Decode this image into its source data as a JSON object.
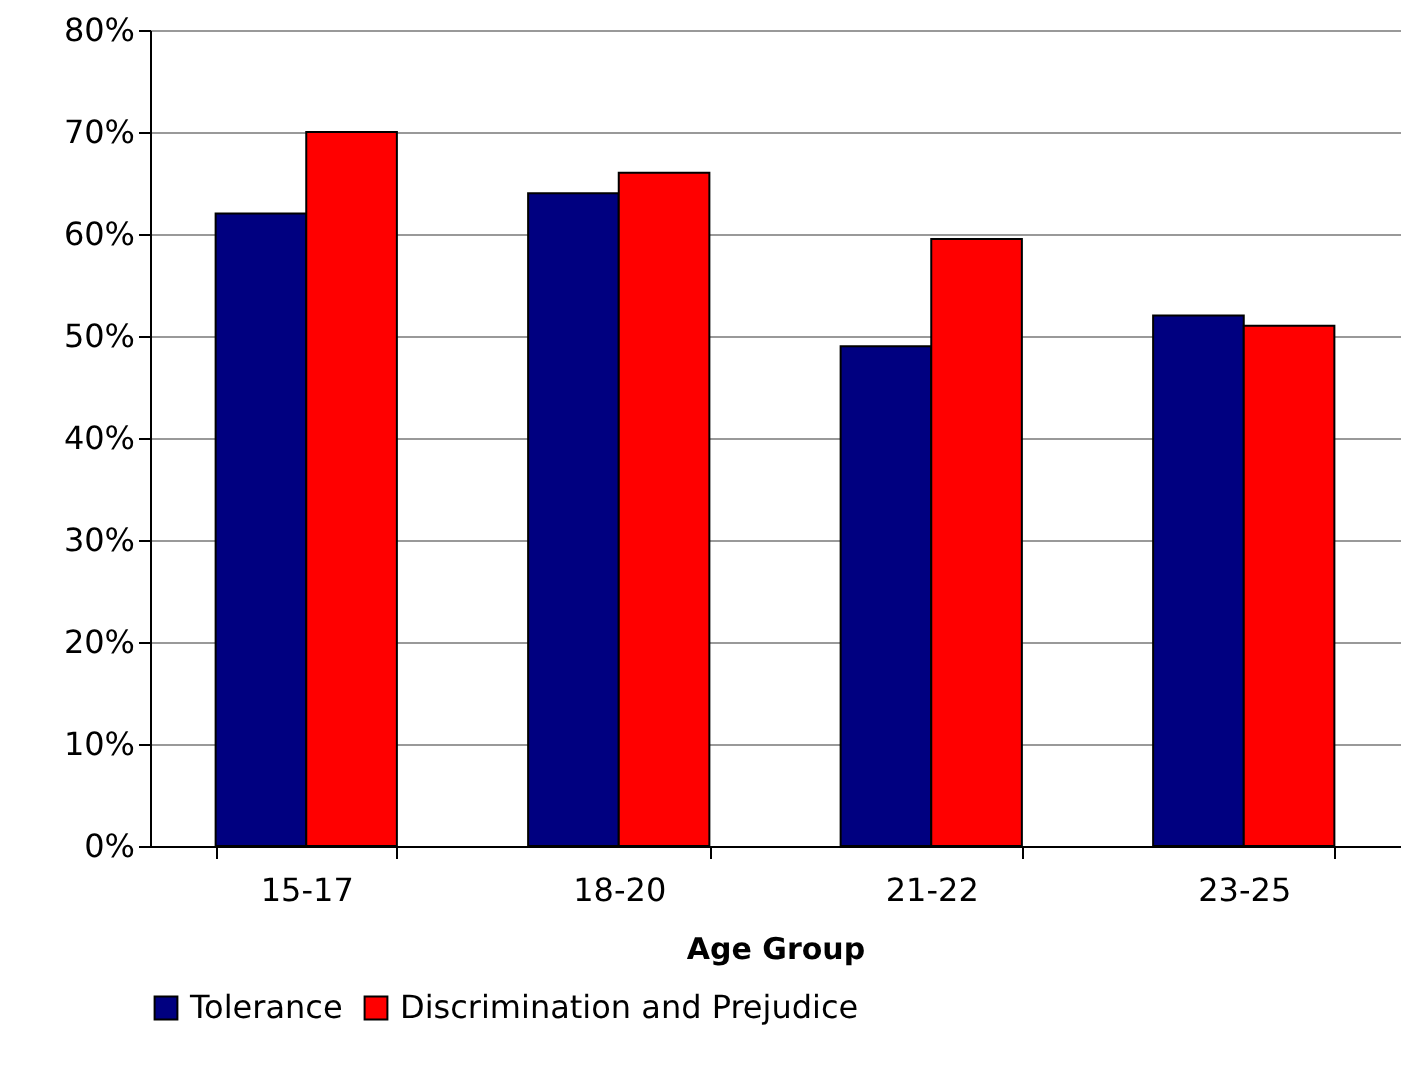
{
  "chart_data": {
    "type": "bar",
    "xlabel": "Age Group",
    "categories": [
      "15-17",
      "18-20",
      "21-22",
      "23-25"
    ],
    "series": [
      {
        "name": "Tolerance",
        "color": "#000080",
        "values": [
          62,
          64,
          49,
          52
        ]
      },
      {
        "name": "Discrimination and Prejudice",
        "color": "#ff0000",
        "values": [
          70,
          66,
          59.5,
          51
        ]
      }
    ],
    "ylim": [
      0,
      80
    ],
    "yticks": [
      {
        "value": 0,
        "label": "0%"
      },
      {
        "value": 10,
        "label": "10%"
      },
      {
        "value": 20,
        "label": "20%"
      },
      {
        "value": 30,
        "label": "30%"
      },
      {
        "value": 40,
        "label": "40%"
      },
      {
        "value": 50,
        "label": "50%"
      },
      {
        "value": 60,
        "label": "60%"
      },
      {
        "value": 70,
        "label": "70%"
      },
      {
        "value": 80,
        "label": "80%"
      }
    ],
    "grid": "y",
    "legend": "bottom"
  }
}
